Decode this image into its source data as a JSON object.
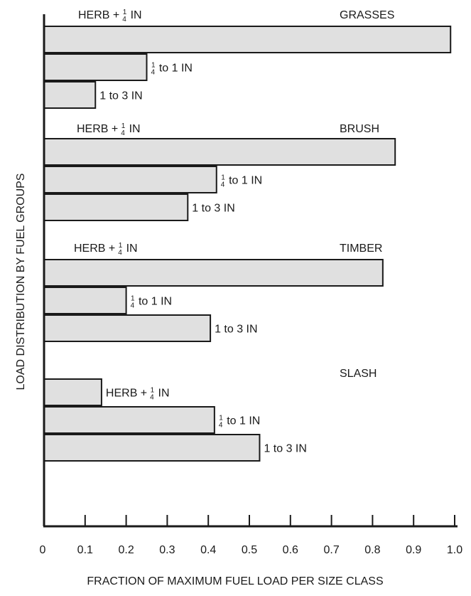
{
  "chart_data": {
    "type": "bar",
    "orientation": "horizontal",
    "xlabel": "FRACTION OF MAXIMUM FUEL LOAD PER SIZE CLASS",
    "ylabel": "LOAD DISTRIBUTION BY FUEL GROUPS",
    "xlim": [
      0,
      1.0
    ],
    "xticks": [
      "0",
      "0.1",
      "0.2",
      "0.3",
      "0.4",
      "0.5",
      "0.6",
      "0.7",
      "0.8",
      "0.9",
      "1.0"
    ],
    "grid": false,
    "bar_color": "#e0e0e0",
    "groups": [
      {
        "name": "GRASSES",
        "bars": [
          {
            "label": "HERB + ¼ IN",
            "value": 0.99
          },
          {
            "label": "¼ to 1 IN",
            "value": 0.25
          },
          {
            "label": "1 to 3 IN",
            "value": 0.125
          }
        ]
      },
      {
        "name": "BRUSH",
        "bars": [
          {
            "label": "HERB + ¼ IN",
            "value": 0.855
          },
          {
            "label": "¼ to 1 IN",
            "value": 0.42
          },
          {
            "label": "1 to 3 IN",
            "value": 0.35
          }
        ]
      },
      {
        "name": "TIMBER",
        "bars": [
          {
            "label": "HERB + ¼ IN",
            "value": 0.825
          },
          {
            "label": "¼ to 1 IN",
            "value": 0.2
          },
          {
            "label": "1 to 3 IN",
            "value": 0.405
          }
        ]
      },
      {
        "name": "SLASH",
        "bars": [
          {
            "label": "HERB + ¼ IN",
            "value": 0.14
          },
          {
            "label": "¼ to 1 IN",
            "value": 0.415
          },
          {
            "label": "1 to 3 IN",
            "value": 0.525
          }
        ]
      }
    ]
  }
}
